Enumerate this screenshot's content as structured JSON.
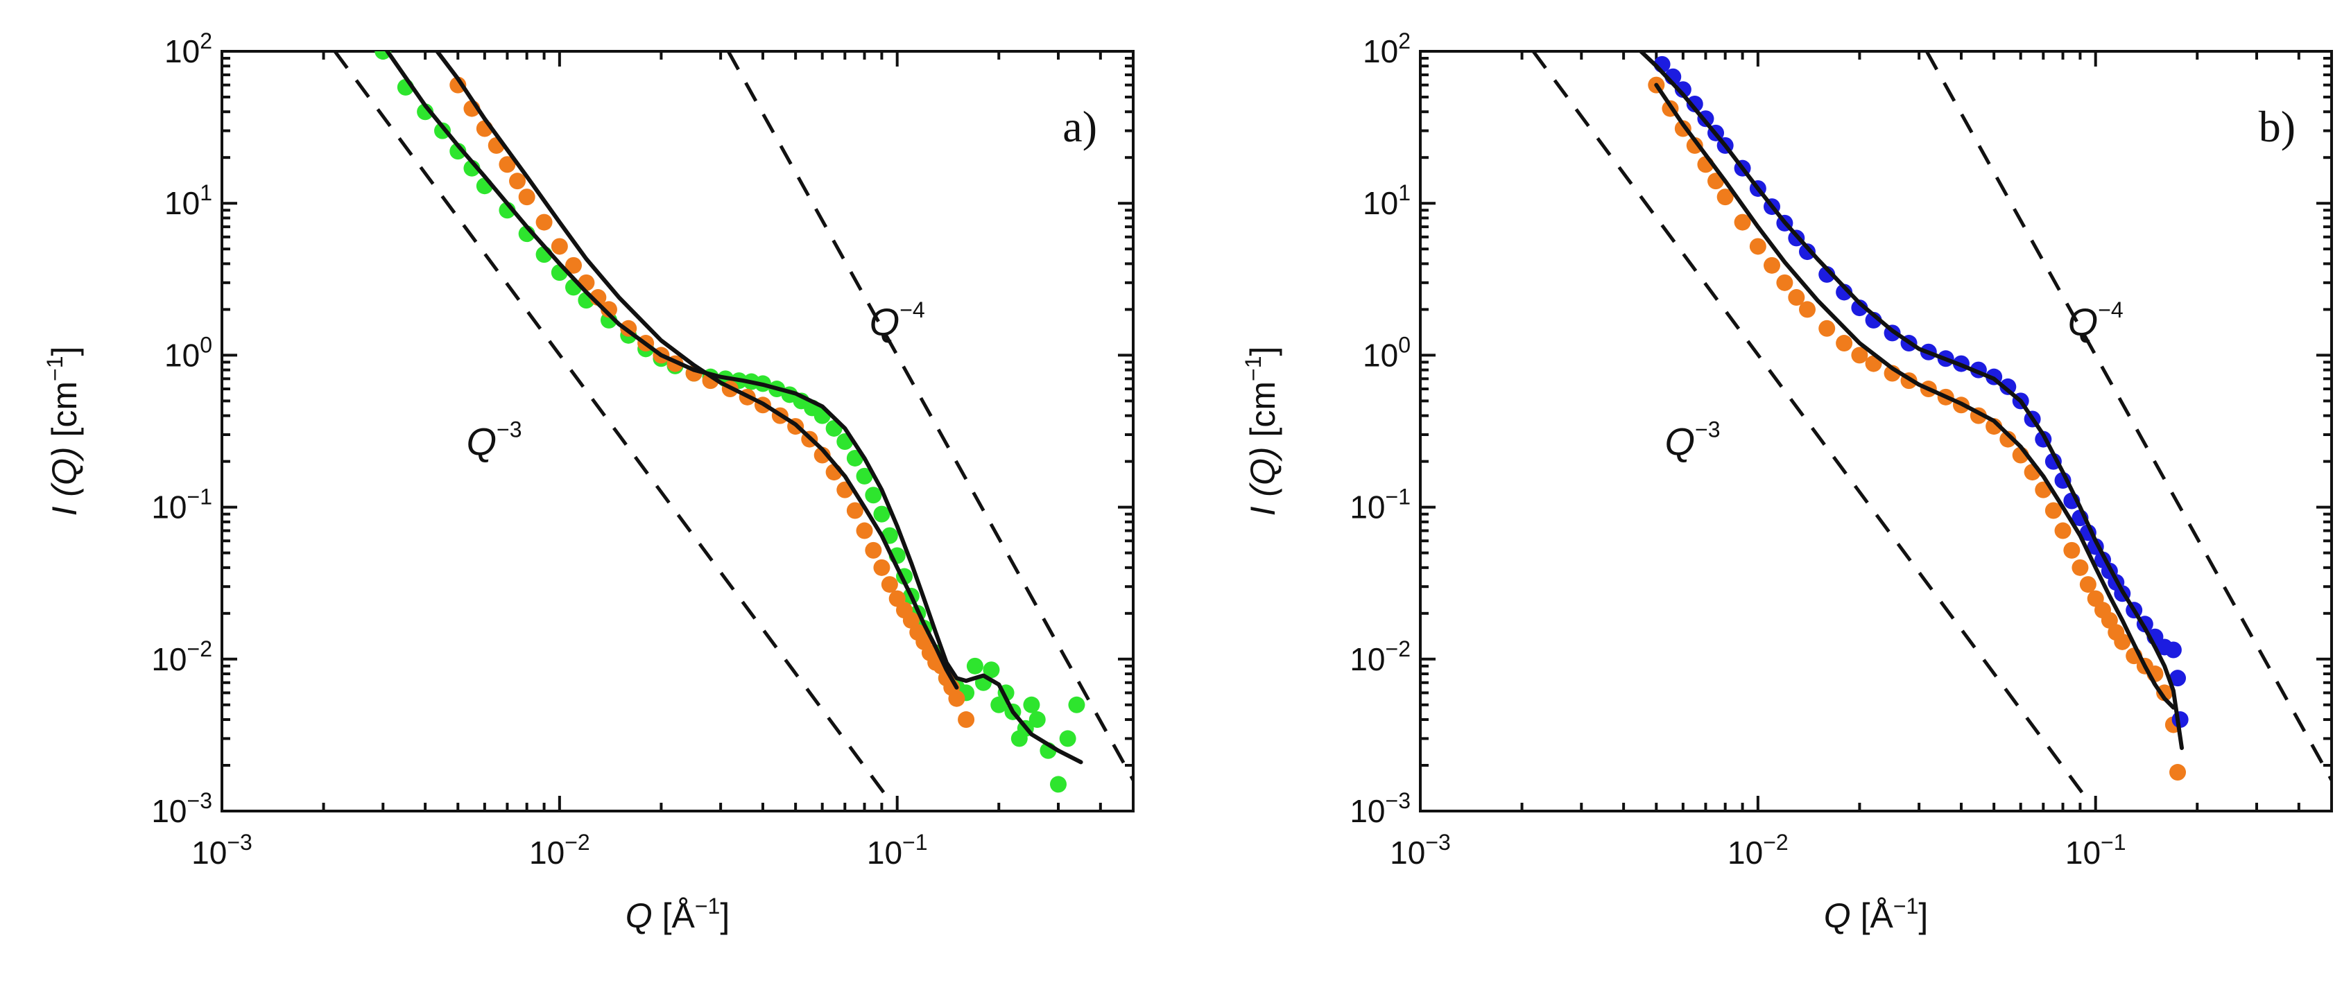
{
  "chart_data": [
    {
      "type": "scatter",
      "panel_label": "a)",
      "x_scale": "log",
      "y_scale": "log",
      "xlim": [
        0.001,
        0.5
      ],
      "ylim": [
        0.001,
        100
      ],
      "xticks": [
        0.001,
        0.01,
        0.1
      ],
      "yticks": [
        0.001,
        0.01,
        0.1,
        1,
        10,
        100
      ],
      "x_tick_labels": [
        {
          "base": "10",
          "exp": "−3"
        },
        {
          "base": "10",
          "exp": "−2"
        },
        {
          "base": "10",
          "exp": "−1"
        }
      ],
      "y_tick_labels": [
        {
          "base": "10",
          "exp": "−3"
        },
        {
          "base": "10",
          "exp": "−2"
        },
        {
          "base": "10",
          "exp": "−1"
        },
        {
          "base": "10",
          "exp": "0"
        },
        {
          "base": "10",
          "exp": "1"
        },
        {
          "base": "10",
          "exp": "2"
        }
      ],
      "xlabel": {
        "var": "Q",
        "unit": " [Å",
        "exp": "−1",
        "close": "]"
      },
      "ylabel": {
        "var": "I (Q)",
        "unit": " [cm",
        "exp": "−1",
        "close": "]"
      },
      "series": [
        {
          "name": "green data",
          "color": "#2ee52e",
          "kind": "points",
          "x": [
            0.003,
            0.0035,
            0.004,
            0.0045,
            0.005,
            0.0055,
            0.006,
            0.007,
            0.008,
            0.009,
            0.01,
            0.011,
            0.012,
            0.014,
            0.016,
            0.018,
            0.02,
            0.022,
            0.025,
            0.028,
            0.031,
            0.034,
            0.037,
            0.04,
            0.044,
            0.048,
            0.052,
            0.056,
            0.06,
            0.065,
            0.07,
            0.075,
            0.08,
            0.085,
            0.09,
            0.095,
            0.1,
            0.105,
            0.11,
            0.115,
            0.12,
            0.13,
            0.14,
            0.15,
            0.16,
            0.17,
            0.18,
            0.19,
            0.2,
            0.21,
            0.22,
            0.23,
            0.24,
            0.25,
            0.26,
            0.28,
            0.3,
            0.32,
            0.34
          ],
          "y": [
            100,
            58,
            40,
            30,
            22,
            17,
            13,
            9,
            6.3,
            4.6,
            3.5,
            2.8,
            2.3,
            1.7,
            1.35,
            1.1,
            0.95,
            0.85,
            0.76,
            0.72,
            0.7,
            0.68,
            0.67,
            0.65,
            0.6,
            0.55,
            0.5,
            0.45,
            0.4,
            0.33,
            0.27,
            0.21,
            0.16,
            0.12,
            0.09,
            0.065,
            0.048,
            0.035,
            0.026,
            0.02,
            0.016,
            0.011,
            0.0075,
            0.0065,
            0.006,
            0.009,
            0.007,
            0.0085,
            0.005,
            0.006,
            0.0045,
            0.003,
            0.0035,
            0.005,
            0.004,
            0.0025,
            0.0015,
            0.003,
            0.005
          ]
        },
        {
          "name": "orange data",
          "color": "#f07c1c",
          "kind": "points",
          "x": [
            0.005,
            0.0055,
            0.006,
            0.0065,
            0.007,
            0.0075,
            0.008,
            0.009,
            0.01,
            0.011,
            0.012,
            0.013,
            0.014,
            0.016,
            0.018,
            0.02,
            0.022,
            0.025,
            0.028,
            0.032,
            0.036,
            0.04,
            0.045,
            0.05,
            0.055,
            0.06,
            0.065,
            0.07,
            0.075,
            0.08,
            0.085,
            0.09,
            0.095,
            0.1,
            0.105,
            0.11,
            0.115,
            0.12,
            0.125,
            0.13,
            0.135,
            0.14,
            0.145,
            0.15,
            0.16
          ],
          "y": [
            60,
            42,
            31,
            24,
            18,
            14,
            11,
            7.5,
            5.2,
            3.9,
            3.0,
            2.4,
            2.0,
            1.5,
            1.2,
            1.0,
            0.88,
            0.76,
            0.68,
            0.6,
            0.53,
            0.47,
            0.4,
            0.34,
            0.28,
            0.22,
            0.17,
            0.13,
            0.095,
            0.07,
            0.052,
            0.04,
            0.031,
            0.025,
            0.021,
            0.018,
            0.015,
            0.013,
            0.011,
            0.0095,
            0.009,
            0.0075,
            0.0065,
            0.0055,
            0.004
          ]
        },
        {
          "name": "fit green",
          "color": "#111111",
          "kind": "line",
          "x": [
            0.003,
            0.004,
            0.005,
            0.006,
            0.008,
            0.01,
            0.012,
            0.015,
            0.02,
            0.025,
            0.03,
            0.035,
            0.04,
            0.05,
            0.06,
            0.07,
            0.08,
            0.09,
            0.1,
            0.11,
            0.12,
            0.13,
            0.14,
            0.15,
            0.16,
            0.18,
            0.2,
            0.22,
            0.25,
            0.3,
            0.35
          ],
          "y": [
            110,
            44,
            24,
            15,
            7,
            4.0,
            2.6,
            1.6,
            1.0,
            0.8,
            0.72,
            0.68,
            0.64,
            0.56,
            0.46,
            0.33,
            0.21,
            0.13,
            0.075,
            0.043,
            0.025,
            0.015,
            0.0095,
            0.0075,
            0.0072,
            0.0078,
            0.0068,
            0.0045,
            0.0032,
            0.0025,
            0.0021
          ]
        },
        {
          "name": "fit orange",
          "color": "#111111",
          "kind": "line",
          "x": [
            0.0042,
            0.005,
            0.006,
            0.008,
            0.01,
            0.012,
            0.015,
            0.02,
            0.025,
            0.03,
            0.04,
            0.05,
            0.06,
            0.07,
            0.08,
            0.09,
            0.1,
            0.11,
            0.12,
            0.13,
            0.14,
            0.15
          ],
          "y": [
            110,
            66,
            36,
            15,
            7.5,
            4.3,
            2.4,
            1.25,
            0.86,
            0.66,
            0.48,
            0.35,
            0.24,
            0.16,
            0.1,
            0.065,
            0.04,
            0.026,
            0.017,
            0.012,
            0.0085,
            0.0065
          ]
        },
        {
          "name": "Q^-3",
          "color": "#111111",
          "kind": "dashed",
          "x": [
            0.00216,
            0.093
          ],
          "y": [
            100,
            0.00125
          ]
        },
        {
          "name": "Q^-4",
          "color": "#111111",
          "kind": "dashed",
          "x": [
            0.0316,
            0.5
          ],
          "y": [
            100,
            0.0016
          ]
        }
      ],
      "annotations": [
        {
          "var": "Q",
          "exp": "−3",
          "x": 0.0064,
          "y": 0.22
        },
        {
          "var": "Q",
          "exp": "−4",
          "x": 0.1,
          "y": 1.35
        }
      ]
    },
    {
      "type": "scatter",
      "panel_label": "b)",
      "x_scale": "log",
      "y_scale": "log",
      "xlim": [
        0.001,
        0.5
      ],
      "ylim": [
        0.001,
        100
      ],
      "xticks": [
        0.001,
        0.01,
        0.1
      ],
      "yticks": [
        0.001,
        0.01,
        0.1,
        1,
        10,
        100
      ],
      "x_tick_labels": [
        {
          "base": "10",
          "exp": "−3"
        },
        {
          "base": "10",
          "exp": "−2"
        },
        {
          "base": "10",
          "exp": "−1"
        }
      ],
      "y_tick_labels": [
        {
          "base": "10",
          "exp": "−3"
        },
        {
          "base": "10",
          "exp": "−2"
        },
        {
          "base": "10",
          "exp": "−1"
        },
        {
          "base": "10",
          "exp": "0"
        },
        {
          "base": "10",
          "exp": "1"
        },
        {
          "base": "10",
          "exp": "2"
        }
      ],
      "xlabel": {
        "var": "Q",
        "unit": " [Å",
        "exp": "−1",
        "close": "]"
      },
      "ylabel": {
        "var": "I (Q)",
        "unit": " [cm",
        "exp": "−1",
        "close": "]"
      },
      "series": [
        {
          "name": "orange data",
          "color": "#f07c1c",
          "kind": "points",
          "x": [
            0.005,
            0.0055,
            0.006,
            0.0065,
            0.007,
            0.0075,
            0.008,
            0.009,
            0.01,
            0.011,
            0.012,
            0.013,
            0.014,
            0.016,
            0.018,
            0.02,
            0.022,
            0.025,
            0.028,
            0.032,
            0.036,
            0.04,
            0.045,
            0.05,
            0.055,
            0.06,
            0.065,
            0.07,
            0.075,
            0.08,
            0.085,
            0.09,
            0.095,
            0.1,
            0.105,
            0.11,
            0.115,
            0.12,
            0.13,
            0.14,
            0.15,
            0.16,
            0.17,
            0.175
          ],
          "y": [
            60,
            42,
            31,
            24,
            18,
            14,
            11,
            7.5,
            5.2,
            3.9,
            3.0,
            2.4,
            2.0,
            1.5,
            1.2,
            1.0,
            0.88,
            0.76,
            0.68,
            0.6,
            0.53,
            0.47,
            0.4,
            0.34,
            0.28,
            0.22,
            0.17,
            0.13,
            0.095,
            0.07,
            0.052,
            0.04,
            0.031,
            0.025,
            0.021,
            0.018,
            0.015,
            0.013,
            0.0105,
            0.009,
            0.008,
            0.006,
            0.0037,
            0.0018
          ]
        },
        {
          "name": "blue data",
          "color": "#1c1ce0",
          "kind": "points",
          "x": [
            0.0052,
            0.0056,
            0.006,
            0.0065,
            0.007,
            0.0075,
            0.008,
            0.009,
            0.01,
            0.011,
            0.012,
            0.013,
            0.014,
            0.016,
            0.018,
            0.02,
            0.022,
            0.025,
            0.028,
            0.032,
            0.036,
            0.04,
            0.045,
            0.05,
            0.055,
            0.06,
            0.065,
            0.07,
            0.075,
            0.08,
            0.085,
            0.09,
            0.095,
            0.1,
            0.105,
            0.11,
            0.115,
            0.12,
            0.13,
            0.14,
            0.15,
            0.16,
            0.17,
            0.175,
            0.178
          ],
          "y": [
            82,
            68,
            56,
            45,
            36,
            29,
            24,
            17,
            12.5,
            9.5,
            7.4,
            5.9,
            4.8,
            3.4,
            2.6,
            2.05,
            1.7,
            1.4,
            1.2,
            1.05,
            0.95,
            0.88,
            0.8,
            0.72,
            0.62,
            0.5,
            0.38,
            0.28,
            0.2,
            0.15,
            0.11,
            0.085,
            0.068,
            0.055,
            0.045,
            0.038,
            0.032,
            0.027,
            0.021,
            0.017,
            0.014,
            0.012,
            0.0115,
            0.0075,
            0.004
          ]
        },
        {
          "name": "fit blue",
          "color": "#111111",
          "kind": "line",
          "x": [
            0.0045,
            0.005,
            0.006,
            0.008,
            0.01,
            0.012,
            0.015,
            0.02,
            0.025,
            0.03,
            0.04,
            0.05,
            0.06,
            0.07,
            0.08,
            0.09,
            0.1,
            0.11,
            0.12,
            0.13,
            0.14,
            0.15,
            0.16,
            0.17,
            0.18
          ],
          "y": [
            100,
            80,
            52,
            24,
            12.5,
            7.5,
            4.3,
            2.2,
            1.45,
            1.1,
            0.86,
            0.7,
            0.5,
            0.3,
            0.17,
            0.1,
            0.06,
            0.04,
            0.028,
            0.021,
            0.016,
            0.012,
            0.009,
            0.0062,
            0.0026
          ]
        },
        {
          "name": "fit orange",
          "color": "#111111",
          "kind": "line",
          "x": [
            0.005,
            0.006,
            0.008,
            0.01,
            0.012,
            0.015,
            0.02,
            0.025,
            0.03,
            0.04,
            0.05,
            0.06,
            0.07,
            0.08,
            0.09,
            0.1,
            0.11,
            0.12,
            0.13,
            0.14,
            0.15,
            0.16,
            0.17
          ],
          "y": [
            60,
            33,
            14,
            7.0,
            4.1,
            2.3,
            1.2,
            0.82,
            0.64,
            0.48,
            0.37,
            0.25,
            0.16,
            0.1,
            0.065,
            0.04,
            0.026,
            0.018,
            0.0125,
            0.009,
            0.0068,
            0.0055,
            0.0048
          ]
        },
        {
          "name": "Q^-3",
          "color": "#111111",
          "kind": "dashed",
          "x": [
            0.00216,
            0.093
          ],
          "y": [
            100,
            0.00125
          ]
        },
        {
          "name": "Q^-4",
          "color": "#111111",
          "kind": "dashed",
          "x": [
            0.0316,
            0.5
          ],
          "y": [
            100,
            0.0016
          ]
        }
      ],
      "annotations": [
        {
          "var": "Q",
          "exp": "−3",
          "x": 0.0064,
          "y": 0.22
        },
        {
          "var": "Q",
          "exp": "−4",
          "x": 0.1,
          "y": 1.35
        }
      ]
    }
  ]
}
